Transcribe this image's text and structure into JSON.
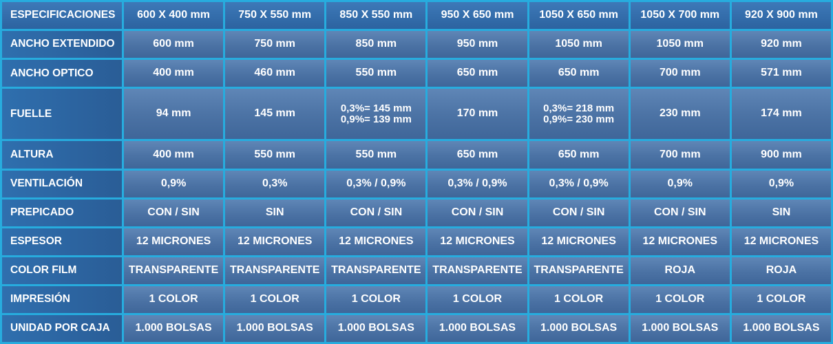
{
  "table": {
    "header": {
      "label": "ESPECIFICACIONES",
      "sizes": [
        "600 X 400 mm",
        "750 X 550 mm",
        "850 X 550 mm",
        "950 X 650 mm",
        "1050 X 650 mm",
        "1050 X 700 mm",
        "920 X 900 mm"
      ]
    },
    "rows": [
      {
        "label": "ANCHO EXTENDIDO",
        "values": [
          "600 mm",
          "750 mm",
          "850 mm",
          "950 mm",
          "1050 mm",
          "1050 mm",
          "920 mm"
        ]
      },
      {
        "label": "ANCHO OPTICO",
        "values": [
          "400 mm",
          "460 mm",
          "550 mm",
          "650 mm",
          "650 mm",
          "700 mm",
          "571 mm"
        ]
      },
      {
        "label": "FUELLE",
        "values": [
          "94 mm",
          "145 mm",
          "0,3%= 145 mm",
          "170 mm",
          "0,3%= 218 mm",
          "230 mm",
          "174 mm"
        ],
        "values_line2": [
          "",
          "",
          "0,9%= 139 mm",
          "",
          "0,9%= 230 mm",
          "",
          ""
        ]
      },
      {
        "label": "ALTURA",
        "values": [
          "400 mm",
          "550 mm",
          "550 mm",
          "650 mm",
          "650 mm",
          "700 mm",
          "900 mm"
        ]
      },
      {
        "label": "VENTILACIÓN",
        "values": [
          "0,9%",
          "0,3%",
          "0,3% / 0,9%",
          "0,3% / 0,9%",
          "0,3% / 0,9%",
          "0,9%",
          "0,9%"
        ]
      },
      {
        "label": "PREPICADO",
        "values": [
          "CON / SIN",
          "SIN",
          "CON / SIN",
          "CON / SIN",
          "CON / SIN",
          "CON / SIN",
          "SIN"
        ]
      },
      {
        "label": "ESPESOR",
        "values": [
          "12 MICRONES",
          "12 MICRONES",
          "12 MICRONES",
          "12 MICRONES",
          "12 MICRONES",
          "12 MICRONES",
          "12 MICRONES"
        ]
      },
      {
        "label": "COLOR FILM",
        "values": [
          "TRANSPARENTE",
          "TRANSPARENTE",
          "TRANSPARENTE",
          "TRANSPARENTE",
          "TRANSPARENTE",
          "ROJA",
          "ROJA"
        ]
      },
      {
        "label": "IMPRESIÓN",
        "values": [
          "1 COLOR",
          "1 COLOR",
          "1 COLOR",
          "1 COLOR",
          "1 COLOR",
          "1 COLOR",
          "1 COLOR"
        ]
      },
      {
        "label": "UNIDAD POR CAJA",
        "values": [
          "1.000 BOLSAS",
          "1.000 BOLSAS",
          "1.000 BOLSAS",
          "1.000 BOLSAS",
          "1.000 BOLSAS",
          "1.000 BOLSAS",
          "1.000 BOLSAS"
        ]
      }
    ]
  }
}
